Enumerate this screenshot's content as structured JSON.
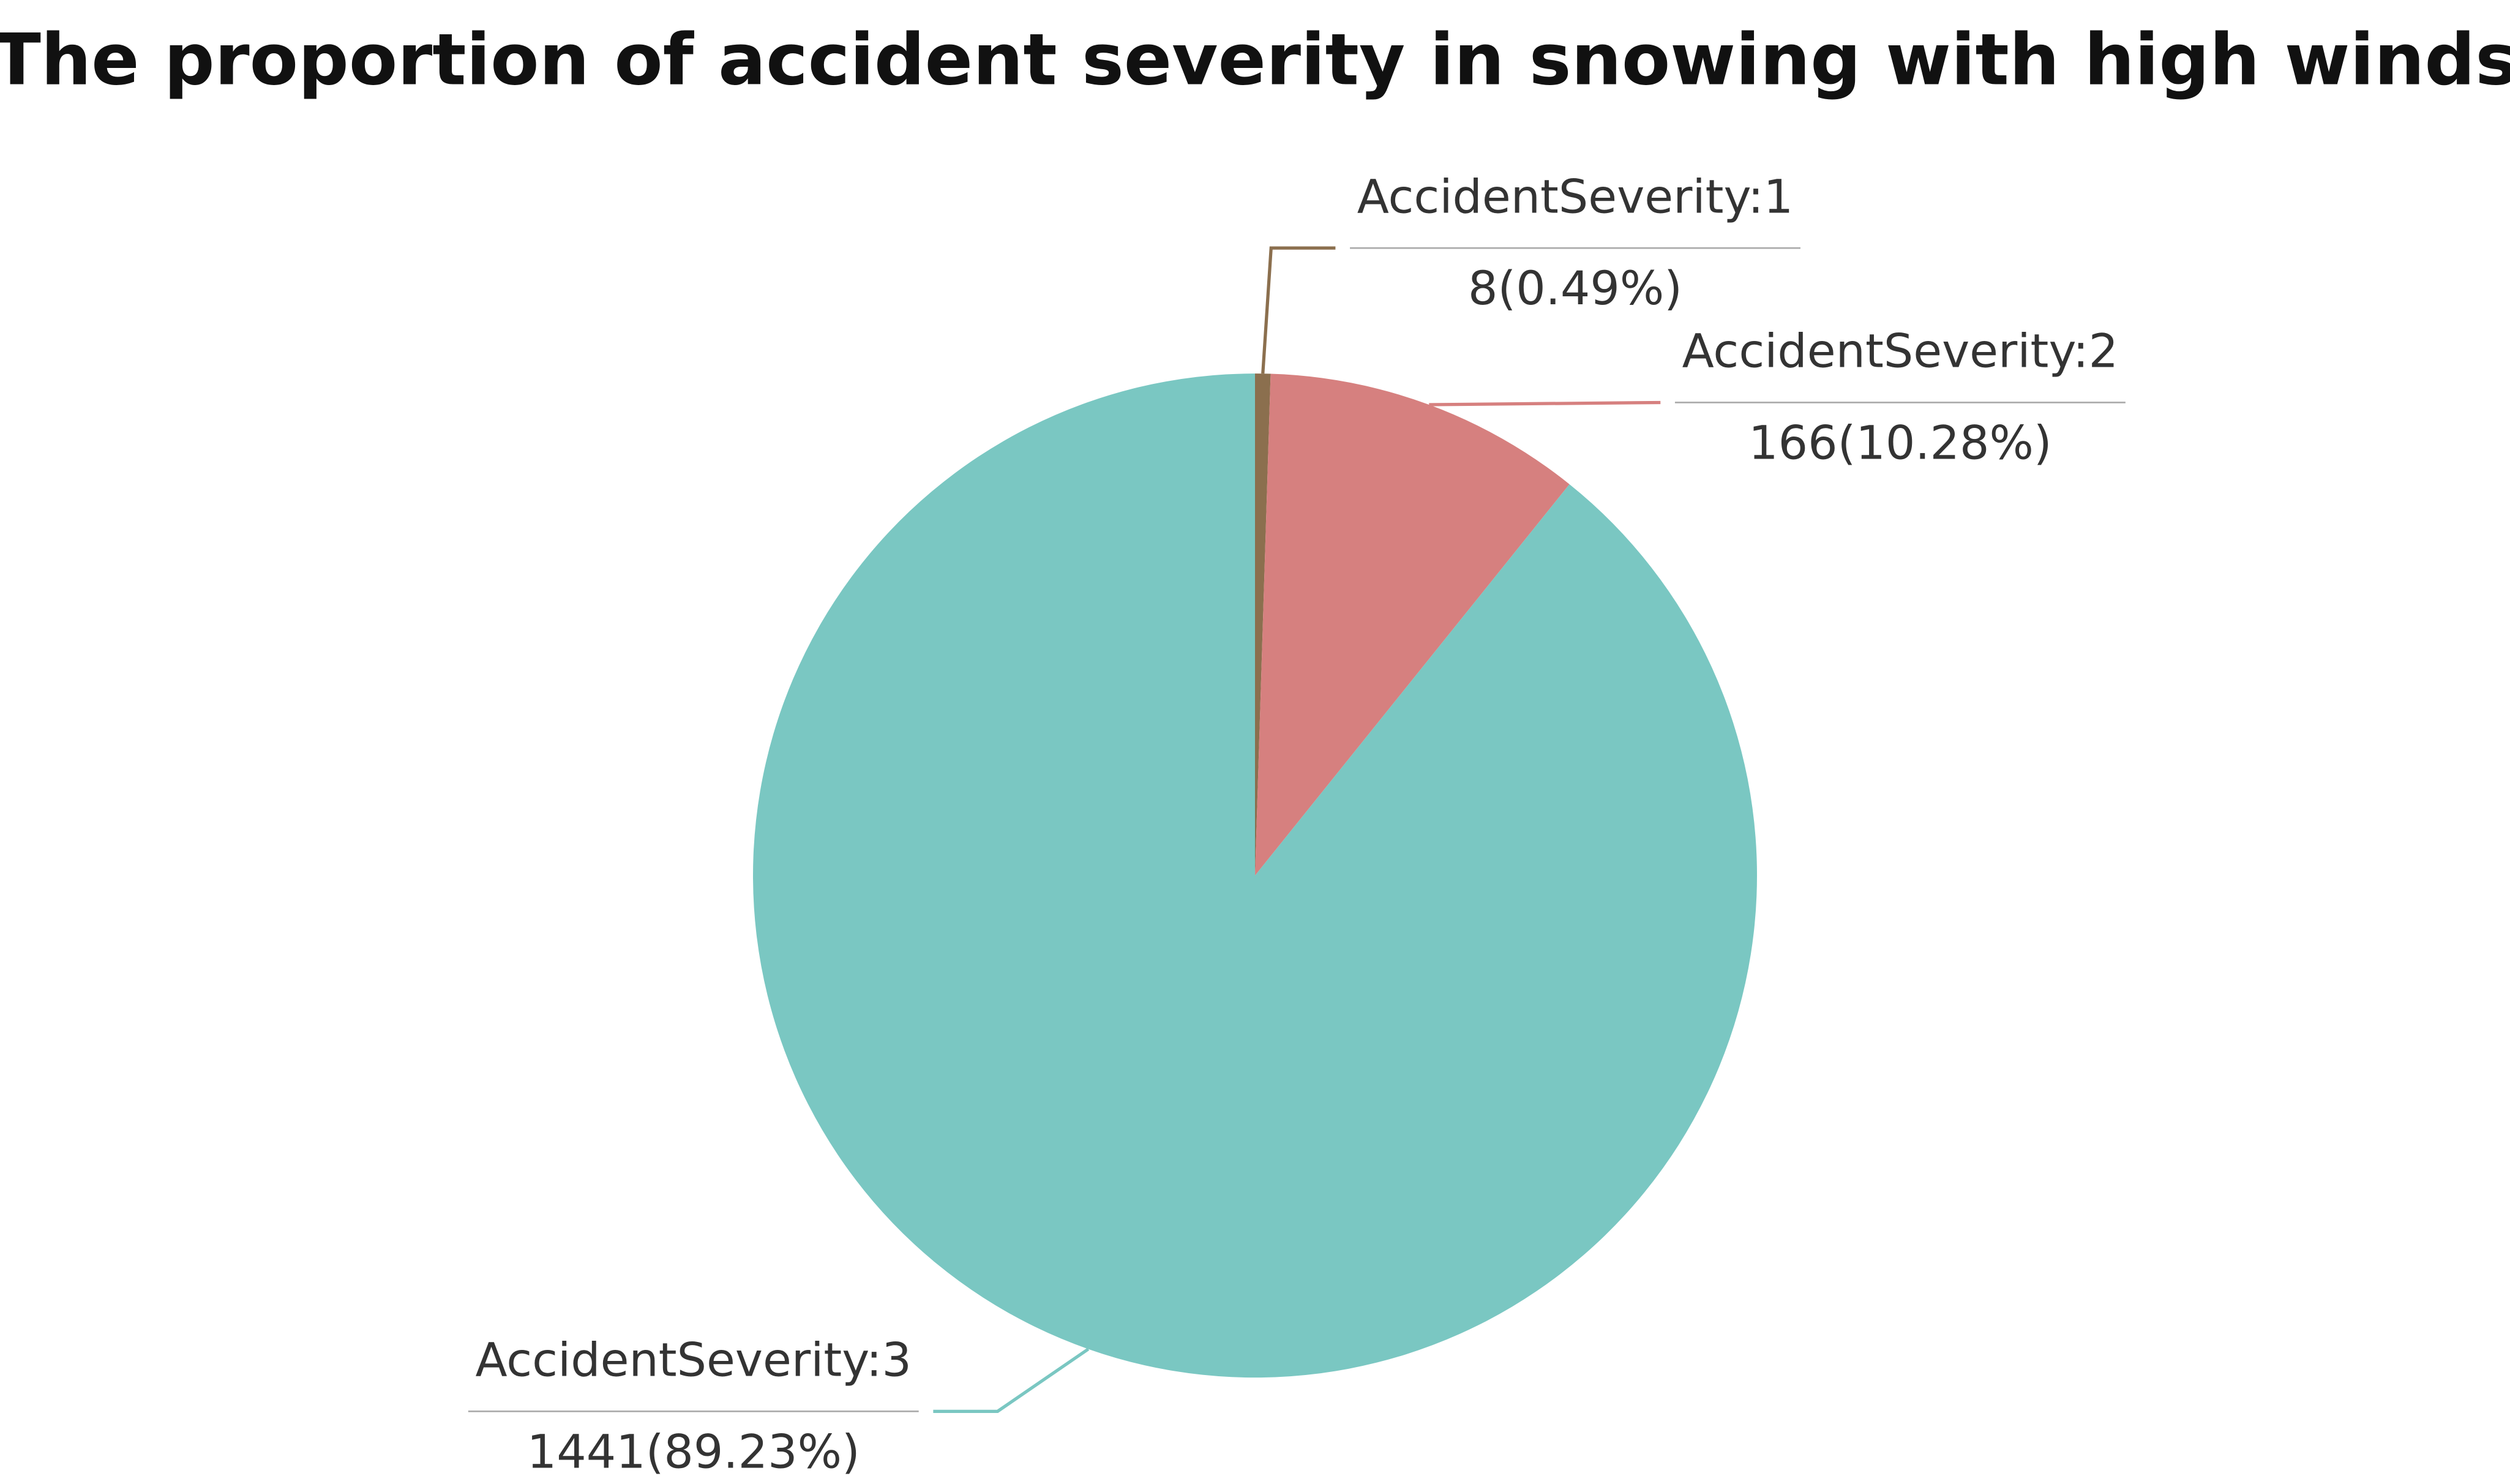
{
  "chart_data": {
    "type": "pie",
    "title": "The proportion of accident severity in snowing with high winds",
    "categories": [
      "AccidentSeverity:1",
      "AccidentSeverity:2",
      "AccidentSeverity:3"
    ],
    "values": [
      8,
      166,
      1441
    ],
    "value_labels": [
      "8(0.49%)",
      "166(10.28%)",
      "1441(89.23%)"
    ],
    "colors": [
      "#8b6f4e",
      "#d6807f",
      "#7ac7c2"
    ]
  }
}
